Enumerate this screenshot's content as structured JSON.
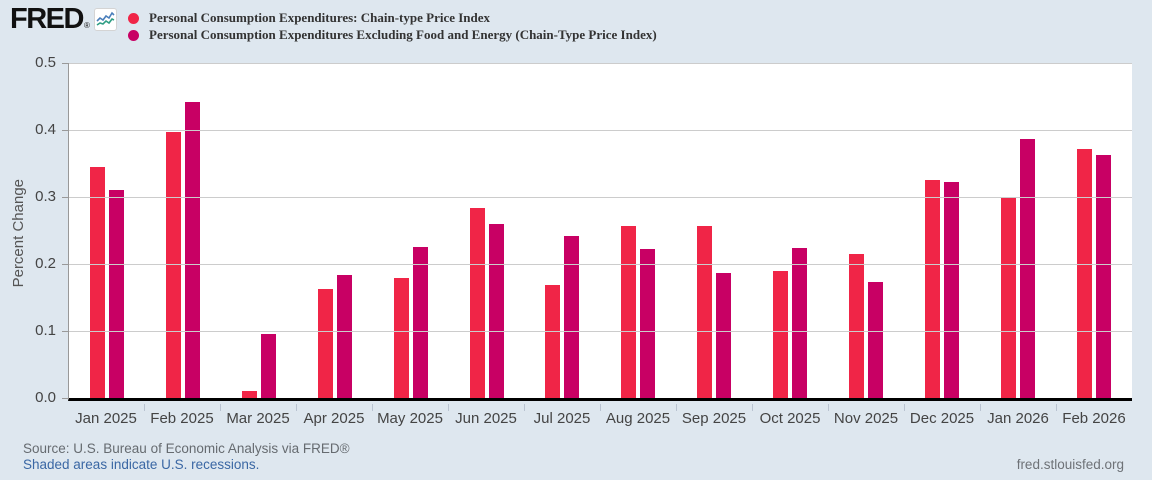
{
  "header": {
    "logo_text": "FRED",
    "logo_registered": "®",
    "legend": [
      {
        "label": "Personal Consumption Expenditures: Chain-type Price Index",
        "color": "#f02547"
      },
      {
        "label": "Personal Consumption Expenditures Excluding Food and Energy (Chain-Type Price Index)",
        "color": "#c80064"
      }
    ]
  },
  "chart_data": {
    "type": "bar",
    "title": "",
    "categories": [
      "Jan 2025",
      "Feb 2025",
      "Mar 2025",
      "Apr 2025",
      "May 2025",
      "Jun 2025",
      "Jul 2025",
      "Aug 2025",
      "Sep 2025",
      "Oct 2025",
      "Nov 2025",
      "Dec 2025",
      "Jan 2026",
      "Feb 2026"
    ],
    "series": [
      {
        "name": "Personal Consumption Expenditures: Chain-type Price Index",
        "color": "#f02547",
        "values": [
          0.345,
          0.397,
          0.011,
          0.163,
          0.179,
          0.283,
          0.168,
          0.257,
          0.256,
          0.19,
          0.215,
          0.325,
          0.299,
          0.371
        ]
      },
      {
        "name": "Personal Consumption Expenditures Excluding Food and Energy (Chain-Type Price Index)",
        "color": "#c80064",
        "values": [
          0.31,
          0.442,
          0.095,
          0.183,
          0.225,
          0.26,
          0.242,
          0.222,
          0.186,
          0.224,
          0.173,
          0.322,
          0.387,
          0.362
        ]
      }
    ],
    "xlabel": "",
    "ylabel": "Percent Change",
    "ylim": [
      0,
      0.5
    ],
    "yticks": [
      "0.0",
      "0.1",
      "0.2",
      "0.3",
      "0.4",
      "0.5"
    ],
    "grid": true,
    "legend_position": "top-left"
  },
  "footer": {
    "source": "Source: U.S. Bureau of Economic Analysis via FRED®",
    "recessions_link": "Shaded areas indicate U.S. recessions.",
    "site": "fred.stlouisfed.org"
  }
}
